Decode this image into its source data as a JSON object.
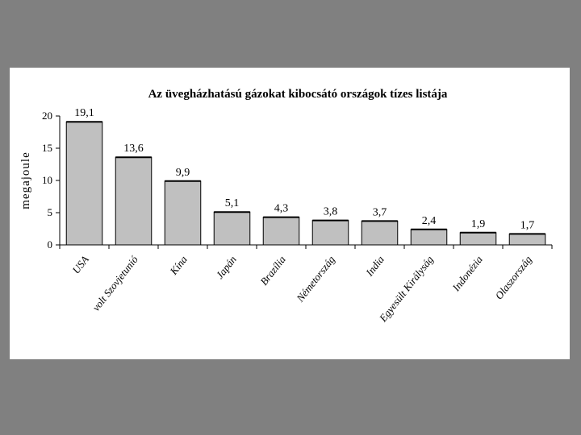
{
  "chart_data": {
    "type": "bar",
    "title": "Az üvegházhatású gázokat kibocsátó országok tízes listája",
    "ylabel": "megajoule",
    "xlabel": "",
    "ylim": [
      0,
      20
    ],
    "yticks": [
      0,
      5,
      10,
      15,
      20
    ],
    "grid": false,
    "legend": "none",
    "categories": [
      "USA",
      "volt Szovjetunió",
      "Kína",
      "Japán",
      "Brazília",
      "Németország",
      "India",
      "Egyesült Királyság",
      "Indonézia",
      "Olaszország"
    ],
    "values": [
      19.1,
      13.6,
      9.9,
      5.1,
      4.3,
      3.8,
      3.7,
      2.4,
      1.9,
      1.7
    ],
    "data_labels": [
      "19,1",
      "13,6",
      "9,9",
      "5,1",
      "4,3",
      "3,8",
      "3,7",
      "2,4",
      "1,9",
      "1,7"
    ],
    "bar_color": "#c0c0c0",
    "bar_edge_color": "#000000"
  }
}
